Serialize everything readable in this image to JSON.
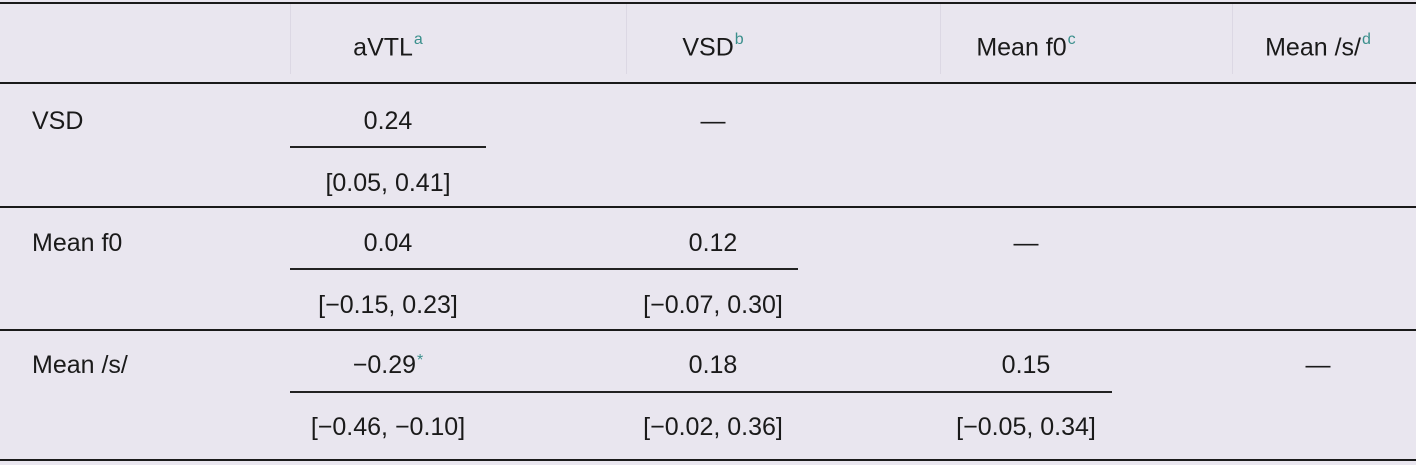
{
  "header": {
    "columns": [
      {
        "label": "aVTL",
        "note": "a"
      },
      {
        "label": "VSD",
        "note": "b"
      },
      {
        "label": "Mean f0",
        "note": "c"
      },
      {
        "label": "Mean /s/",
        "note": "d"
      }
    ]
  },
  "rows": [
    {
      "label": "VSD",
      "cells": [
        {
          "value": "0.24",
          "ci": "[0.05, 0.41]",
          "mark": ""
        },
        {
          "value": "—",
          "ci": "",
          "mark": ""
        }
      ]
    },
    {
      "label": "Mean f0",
      "cells": [
        {
          "value": "0.04",
          "ci": "[−0.15, 0.23]",
          "mark": ""
        },
        {
          "value": "0.12",
          "ci": "[−0.07, 0.30]",
          "mark": ""
        },
        {
          "value": "—",
          "ci": "",
          "mark": ""
        }
      ]
    },
    {
      "label": "Mean /s/",
      "cells": [
        {
          "value": "−0.29",
          "ci": "[−0.46, −0.10]",
          "mark": "*"
        },
        {
          "value": "0.18",
          "ci": "[−0.02, 0.36]",
          "mark": ""
        },
        {
          "value": "0.15",
          "ci": "[−0.05, 0.34]",
          "mark": ""
        },
        {
          "value": "—",
          "ci": "",
          "mark": ""
        }
      ]
    }
  ]
}
